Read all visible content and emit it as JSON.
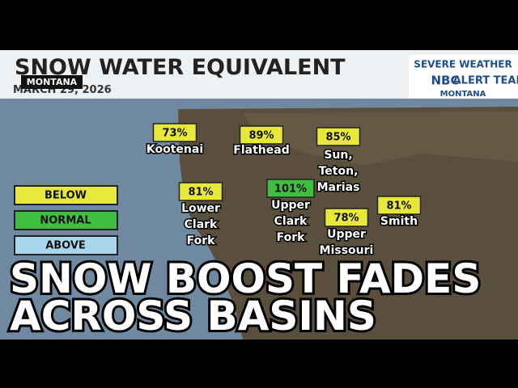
{
  "header": {
    "title": "SNOW WATER EQUIVALENT",
    "date": "MARCH 29, 2026",
    "badge": "MONTANA"
  },
  "logo": {
    "top": "SEVERE WEATHER",
    "brand": "NBC",
    "team": "ALERT TEAM",
    "station": "MONTANA"
  },
  "legend": [
    "BELOW",
    "NORMAL",
    "ABOVE"
  ],
  "basins": [
    {
      "value": "73%",
      "lines": [
        "Kootenai"
      ]
    },
    {
      "value": "89%",
      "lines": [
        "Flathead"
      ]
    },
    {
      "value": "85%",
      "lines": [
        "Sun,",
        "Teton,",
        "Marias"
      ]
    },
    {
      "value": "81%",
      "lines": [
        "Lower",
        "Clark",
        "Fork"
      ]
    },
    {
      "value": "101%",
      "lines": [
        "Upper",
        "Clark",
        "Fork"
      ]
    },
    {
      "value": "78%",
      "lines": [
        "Upper",
        "Missouri"
      ]
    },
    {
      "value": "81%",
      "lines": [
        "Smith"
      ]
    }
  ],
  "headline": [
    "SNOW BOOST FADES",
    "ACROSS BASINS"
  ]
}
